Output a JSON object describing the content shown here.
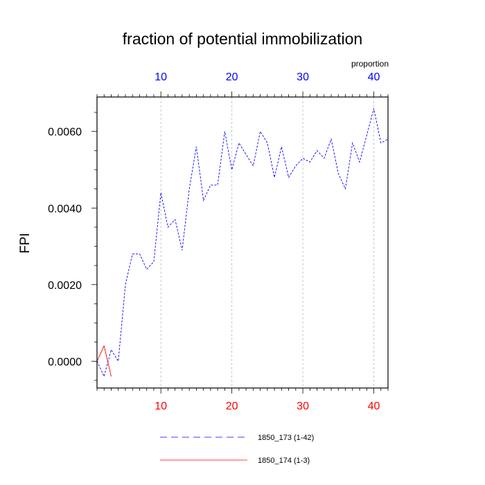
{
  "chart_data": {
    "type": "line",
    "title": "fraction of potential immobilization",
    "top_axis_label": "proportion",
    "ylabel": "FPI",
    "xlim": [
      1,
      42
    ],
    "ylim": [
      -0.0007,
      0.0069
    ],
    "grid": "vertical dashed",
    "x_ticks": [
      10,
      20,
      30,
      40
    ],
    "x_tick_labels": [
      "10",
      "20",
      "30",
      "40"
    ],
    "y_ticks": [
      0.0,
      0.002,
      0.004,
      0.006
    ],
    "y_tick_labels": [
      "0.0000",
      "0.0020",
      "0.0040",
      "0.0060"
    ],
    "bottom_tick_color": "#ff0000",
    "top_tick_color": "#0000ff",
    "legend_placement": "bottom",
    "series": [
      {
        "name": "1850_173 (1-42)",
        "color": "#0000ff",
        "style": "dashed",
        "x": [
          1,
          2,
          3,
          4,
          5,
          6,
          7,
          8,
          9,
          10,
          11,
          12,
          13,
          14,
          15,
          16,
          17,
          18,
          19,
          20,
          21,
          22,
          23,
          24,
          25,
          26,
          27,
          28,
          29,
          30,
          31,
          32,
          33,
          34,
          35,
          36,
          37,
          38,
          39,
          40,
          41,
          42
        ],
        "y": [
          0.0,
          -0.0004,
          0.0003,
          0.0,
          0.002,
          0.0028,
          0.0028,
          0.0024,
          0.0026,
          0.0044,
          0.0035,
          0.0037,
          0.0029,
          0.0045,
          0.0056,
          0.0042,
          0.0046,
          0.0046,
          0.006,
          0.005,
          0.0057,
          0.0054,
          0.0051,
          0.006,
          0.0057,
          0.0048,
          0.0056,
          0.0048,
          0.0051,
          0.0053,
          0.0052,
          0.0055,
          0.0053,
          0.0058,
          0.0049,
          0.0045,
          0.0057,
          0.0052,
          0.0059,
          0.0066,
          0.0057,
          0.0058
        ]
      },
      {
        "name": "1850_174 (1-3)",
        "color": "#ff0000",
        "style": "solid",
        "x": [
          1,
          2,
          3
        ],
        "y": [
          0.0,
          0.0004,
          -0.0004
        ]
      }
    ]
  }
}
